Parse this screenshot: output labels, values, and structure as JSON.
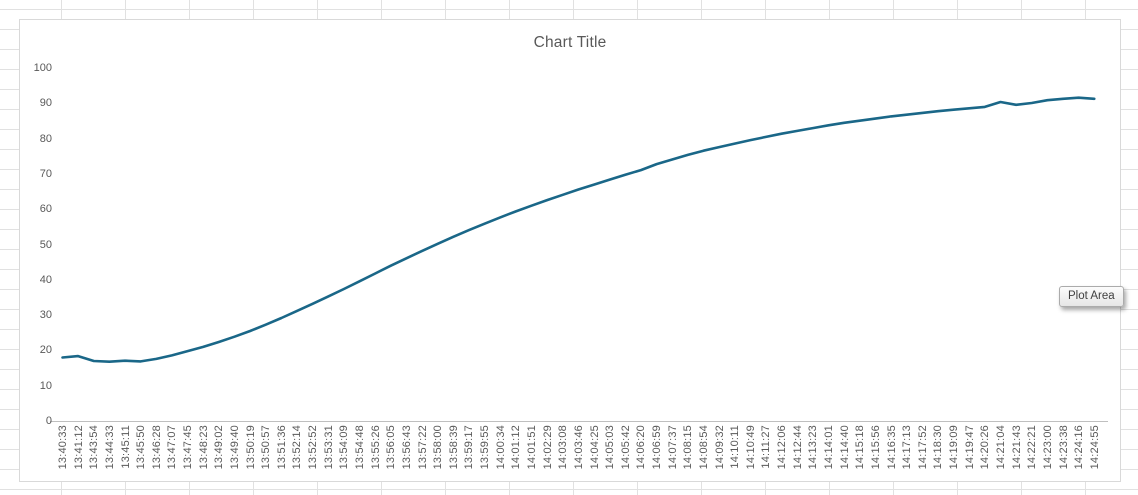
{
  "app": {
    "plot_area_tooltip": "Plot Area"
  },
  "chart_data": {
    "type": "line",
    "title": "Chart Title",
    "xlabel": "",
    "ylabel": "",
    "ylim": [
      0,
      100
    ],
    "y_ticks": [
      0,
      10,
      20,
      30,
      40,
      50,
      60,
      70,
      80,
      90,
      100
    ],
    "grid": false,
    "legend": false,
    "line_color": "#1a6788",
    "axis_line_color": "#bfbfbf",
    "axis_text_color": "#595959",
    "title_color": "#595959",
    "categories": [
      "13:40:33",
      "13:41:12",
      "13:43:54",
      "13:44:33",
      "13:45:11",
      "13:45:50",
      "13:46:28",
      "13:47:07",
      "13:47:45",
      "13:48:23",
      "13:49:02",
      "13:49:40",
      "13:50:19",
      "13:50:57",
      "13:51:36",
      "13:52:14",
      "13:52:52",
      "13:53:31",
      "13:54:09",
      "13:54:48",
      "13:55:26",
      "13:56:05",
      "13:56:43",
      "13:57:22",
      "13:58:00",
      "13:58:39",
      "13:59:17",
      "13:59:55",
      "14:00:34",
      "14:01:12",
      "14:01:51",
      "14:02:29",
      "14:03:08",
      "14:03:46",
      "14:04:25",
      "14:05:03",
      "14:05:42",
      "14:06:20",
      "14:06:59",
      "14:07:37",
      "14:08:15",
      "14:08:54",
      "14:09:32",
      "14:10:11",
      "14:10:49",
      "14:11:27",
      "14:12:06",
      "14:12:44",
      "14:13:23",
      "14:14:01",
      "14:14:40",
      "14:15:18",
      "14:15:56",
      "14:16:35",
      "14:17:13",
      "14:17:52",
      "14:18:30",
      "14:19:09",
      "14:19:47",
      "14:20:26",
      "14:21:04",
      "14:21:43",
      "14:22:21",
      "14:23:00",
      "14:23:38",
      "14:24:16",
      "14:24:55"
    ],
    "values": [
      18,
      18.4,
      17,
      16.8,
      17.1,
      16.9,
      17.6,
      18.6,
      19.8,
      21,
      22.4,
      23.9,
      25.5,
      27.3,
      29.2,
      31.2,
      33.2,
      35.3,
      37.4,
      39.6,
      41.8,
      44,
      46.1,
      48.2,
      50.2,
      52.2,
      54.1,
      55.9,
      57.7,
      59.4,
      61,
      62.6,
      64.1,
      65.6,
      67,
      68.4,
      69.8,
      71.1,
      72.8,
      74.1,
      75.4,
      76.6,
      77.6,
      78.6,
      79.6,
      80.5,
      81.4,
      82.2,
      83,
      83.8,
      84.5,
      85.1,
      85.7,
      86.3,
      86.8,
      87.3,
      87.8,
      88.2,
      88.6,
      89,
      90.4,
      89.6,
      90.1,
      90.9,
      91.3,
      91.6,
      91.3
    ]
  }
}
